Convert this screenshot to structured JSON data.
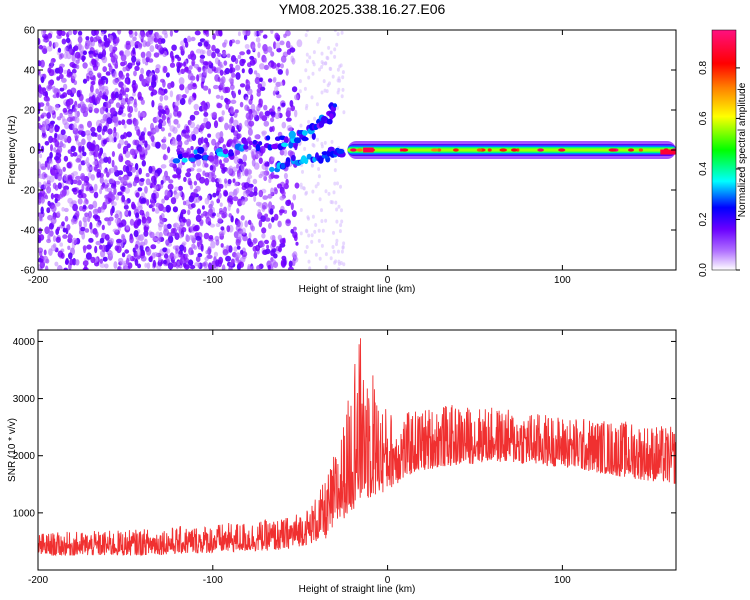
{
  "figure_title": "YM08.2025.338.16.27.E06",
  "chart_data": [
    {
      "type": "heatmap",
      "xlabel": "Height of straight line (km)",
      "ylabel": "Frequency (Hz)",
      "xlim": [
        -200,
        165
      ],
      "ylim": [
        -60,
        60
      ],
      "xticks": [
        -200,
        -100,
        0,
        100
      ],
      "yticks": [
        60,
        40,
        20,
        0,
        -20,
        -40,
        -60
      ],
      "colorbar": {
        "label": "Normalized spectral amplitude",
        "range": [
          0.0,
          0.95
        ],
        "ticks": [
          0.0,
          0.2,
          0.4,
          0.6,
          0.8
        ],
        "colormap": [
          "#ffffff",
          "#7a00ff",
          "#0000ff",
          "#00ffff",
          "#00ff00",
          "#ffff00",
          "#ff8000",
          "#ff0000",
          "#ff0080"
        ]
      },
      "features": [
        {
          "description_id": "noise",
          "x_range": [
            -200,
            -50
          ],
          "y_range": [
            -60,
            60
          ],
          "amplitude": [
            0.05,
            0.15
          ]
        },
        {
          "description_id": "scattered",
          "x_range": [
            -50,
            -25
          ],
          "y_range": [
            -60,
            60
          ],
          "amplitude": [
            0.0,
            0.05
          ]
        },
        {
          "description_id": "ramp",
          "points": [
            [
              -120,
              -3
            ],
            [
              -100,
              -2
            ],
            [
              -80,
              3
            ],
            [
              -60,
              4
            ],
            [
              -45,
              8
            ],
            [
              -35,
              15
            ],
            [
              -30,
              22
            ]
          ],
          "amplitude": [
            0.1,
            0.35
          ]
        },
        {
          "description_id": "lower_ramp",
          "points": [
            [
              -65,
              -8
            ],
            [
              -50,
              -6
            ],
            [
              -35,
              -3
            ],
            [
              -25,
              0
            ]
          ],
          "amplitude": [
            0.15,
            0.35
          ]
        },
        {
          "description_id": "band",
          "x_range": [
            -25,
            165
          ],
          "y_center": 0,
          "amplitude": [
            0.3,
            0.95
          ]
        }
      ]
    },
    {
      "type": "line",
      "xlabel": "Height of straight line (km)",
      "ylabel": "SNR (10 * v/v)",
      "xlim": [
        -200,
        165
      ],
      "ylim": [
        0,
        4200
      ],
      "xticks": [
        -200,
        -100,
        0,
        100
      ],
      "yticks": [
        1000,
        2000,
        3000,
        4000
      ],
      "series_color": "#f03030",
      "envelope": {
        "x": [
          -200,
          -150,
          -100,
          -60,
          -45,
          -35,
          -25,
          -15,
          -5,
          5,
          15,
          30,
          60,
          100,
          140,
          165
        ],
        "low": [
          250,
          250,
          300,
          350,
          450,
          550,
          900,
          1200,
          1300,
          1500,
          1700,
          1800,
          1900,
          1800,
          1600,
          1500
        ],
        "high": [
          650,
          700,
          800,
          900,
          1100,
          1600,
          2600,
          4200,
          3000,
          2700,
          2800,
          2900,
          2850,
          2700,
          2600,
          2500
        ]
      }
    }
  ]
}
